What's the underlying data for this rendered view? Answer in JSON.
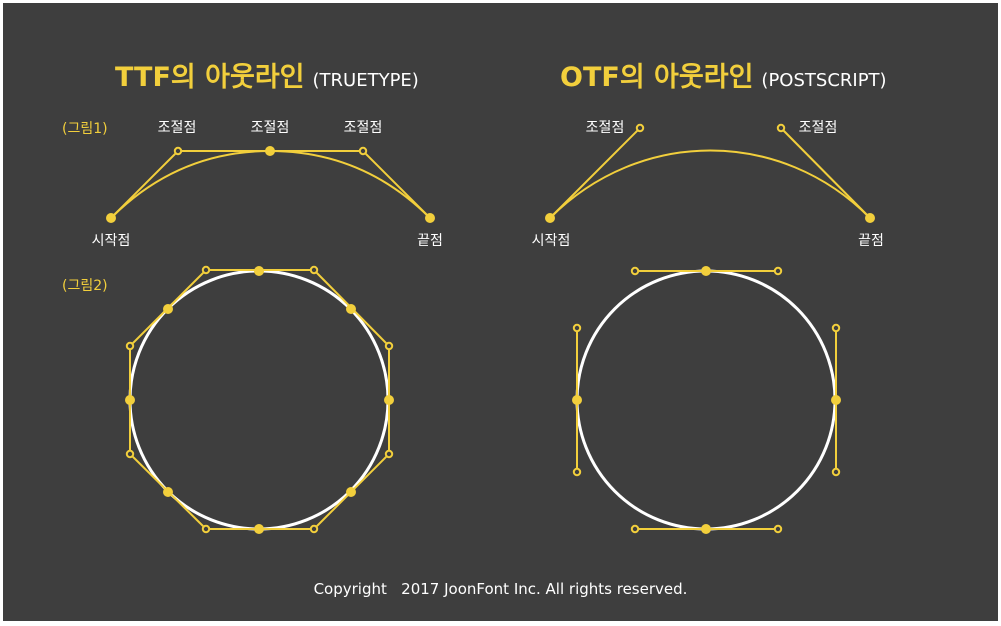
{
  "colors": {
    "background": "#3e3e3e",
    "accent": "#f2cf3c",
    "circle": "#ffffff",
    "text": "#ffffff"
  },
  "ttf": {
    "title": "TTF의 아웃라인",
    "subtitle": "(TRUETYPE)",
    "control_point_label": "조절점",
    "start_label": "시작점",
    "end_label": "끝점"
  },
  "otf": {
    "title": "OTF의 아웃라인",
    "subtitle": "(POSTSCRIPT)",
    "control_point_label": "조절점",
    "start_label": "시작점",
    "end_label": "끝점"
  },
  "figure1_label": "(그림1)",
  "figure2_label": "(그림2)",
  "copyright": "Copyright   2017 JoonFont Inc. All rights reserved."
}
